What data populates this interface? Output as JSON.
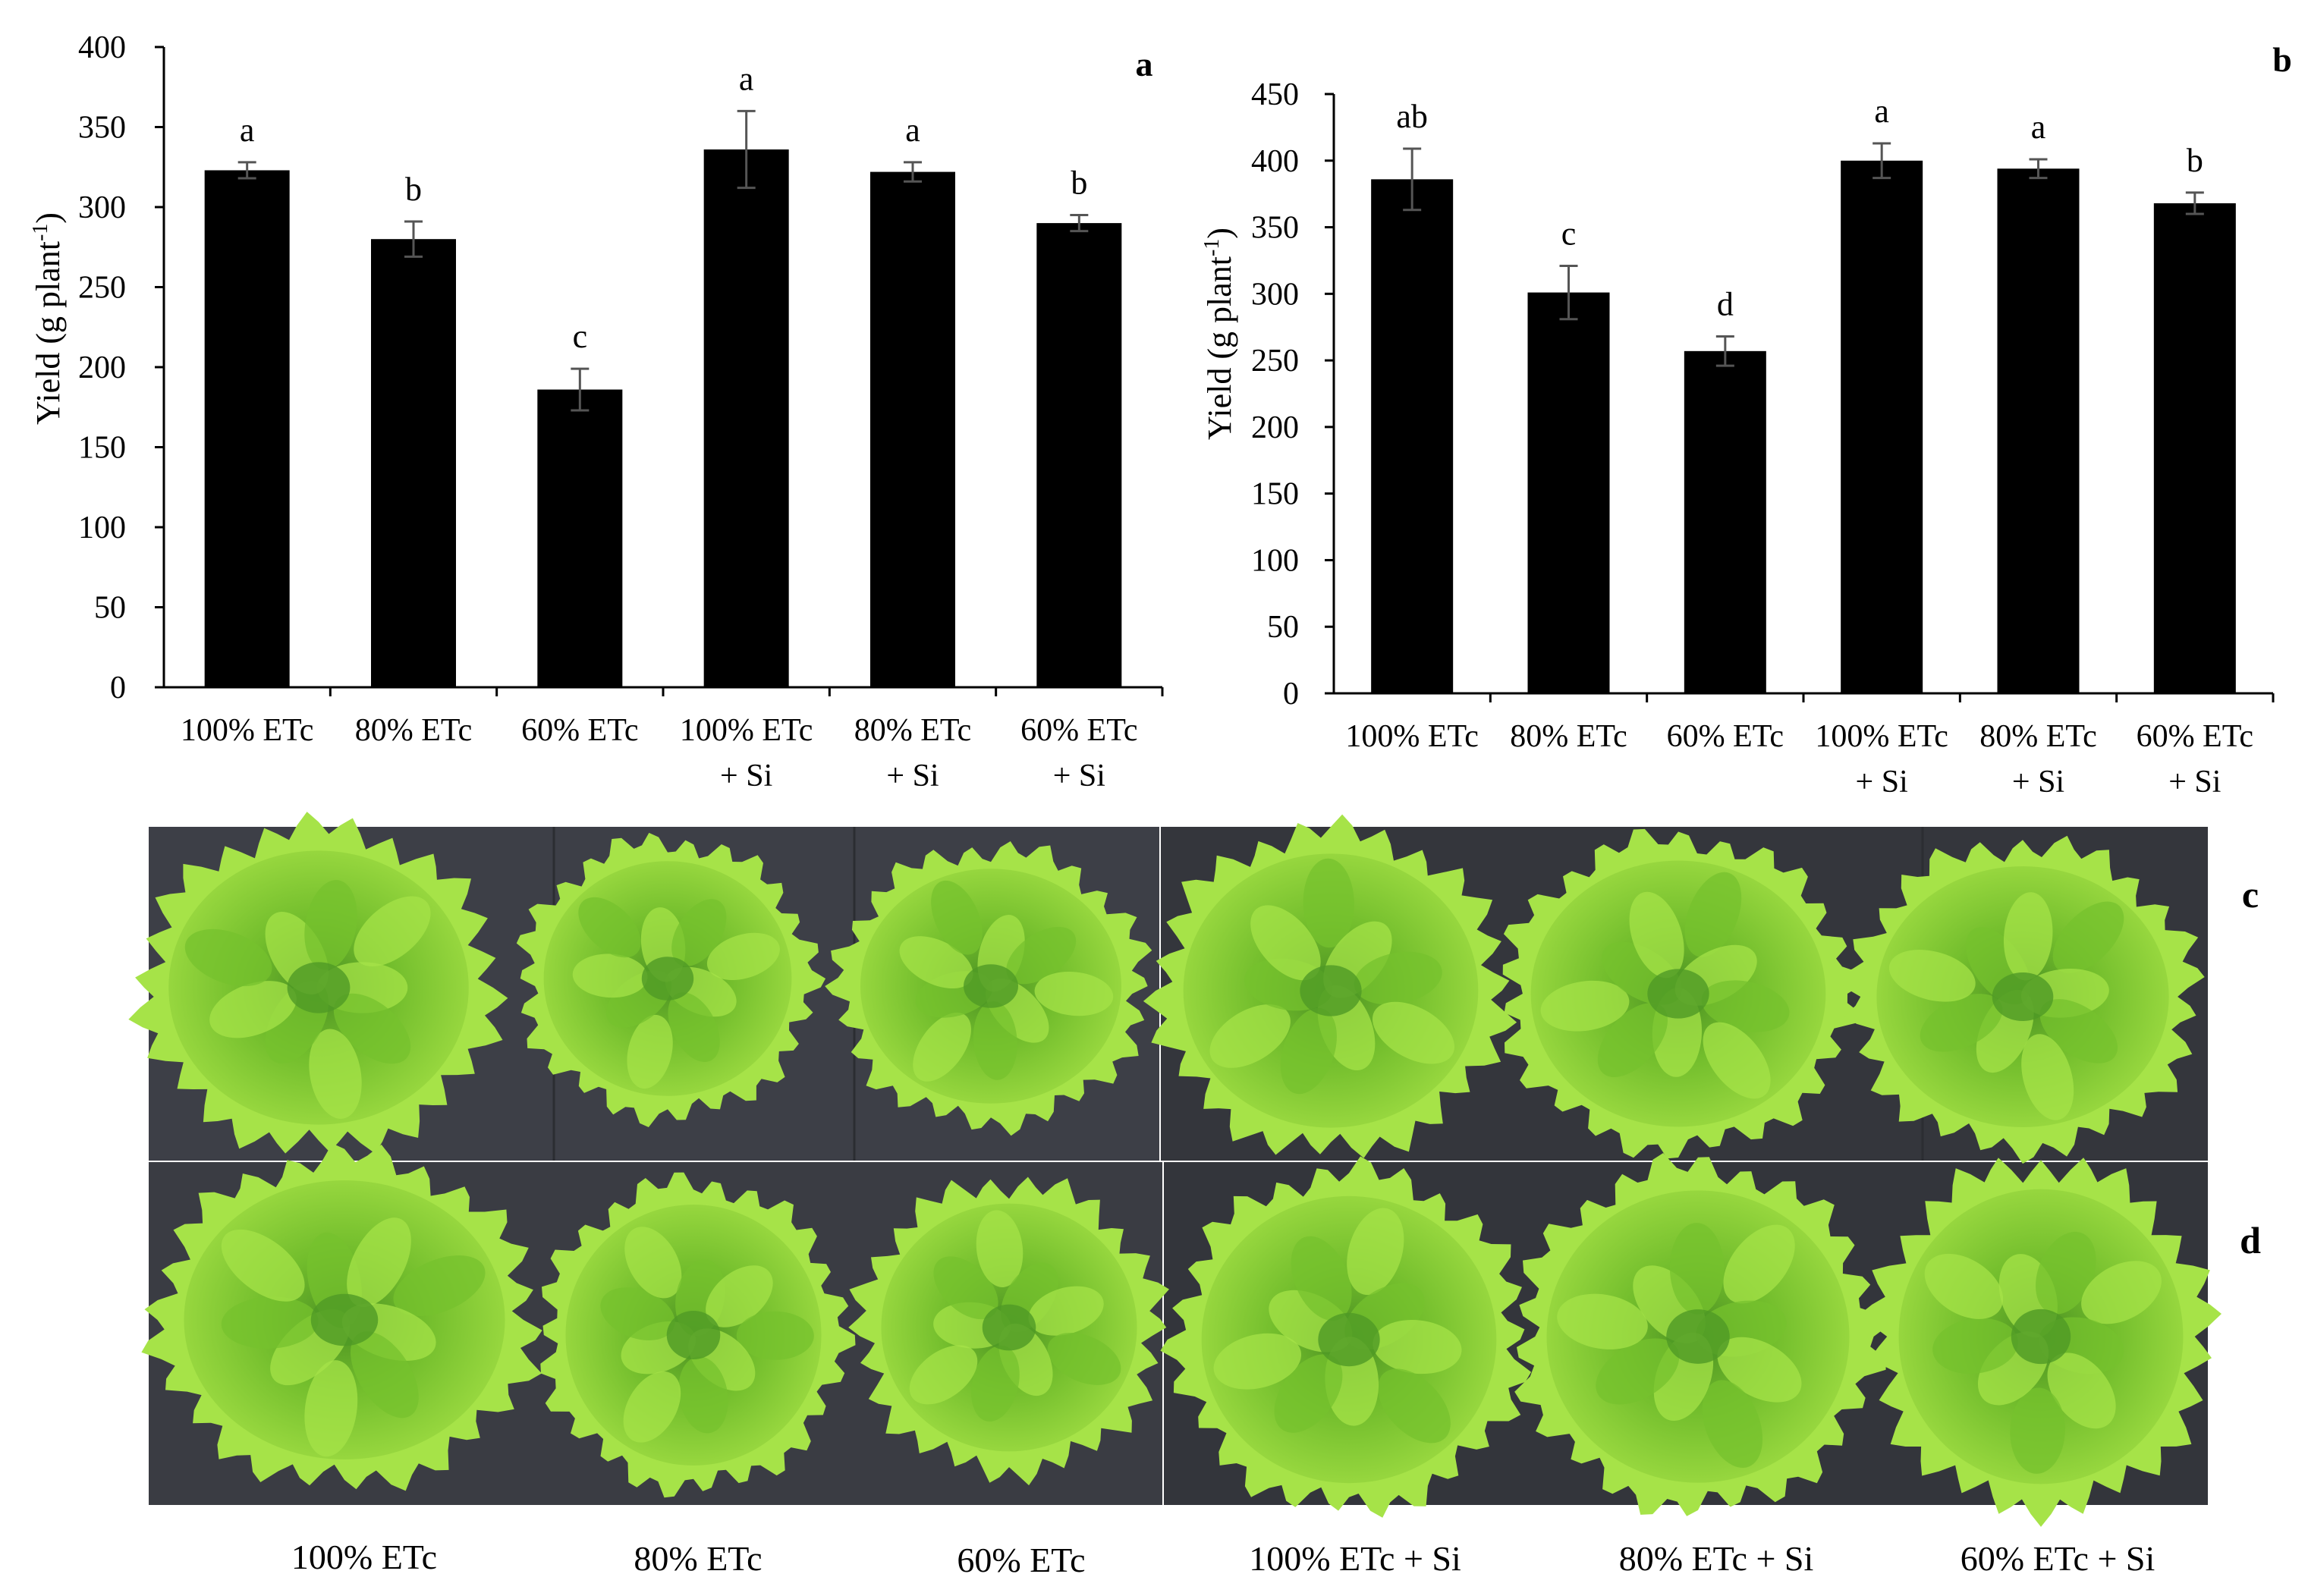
{
  "chart_data": [
    {
      "type": "bar",
      "panel_label": "a",
      "ylabel": "Yield (g plant",
      "ylabel_sup": "-1",
      "ylabel_close": ")",
      "ylim": [
        0,
        400
      ],
      "ytick_step": 50,
      "categories": [
        [
          "100% ETc"
        ],
        [
          "80% ETc"
        ],
        [
          "60% ETc"
        ],
        [
          "100% ETc",
          "+ Si"
        ],
        [
          "80% ETc",
          "+ Si"
        ],
        [
          "60% ETc",
          "+ Si"
        ]
      ],
      "values": [
        323,
        280,
        186,
        336,
        322,
        290
      ],
      "errors": [
        5,
        11,
        13,
        24,
        6,
        5
      ],
      "letters": [
        "a",
        "b",
        "c",
        "a",
        "a",
        "b"
      ]
    },
    {
      "type": "bar",
      "panel_label": "b",
      "ylabel": "Yield (g plant",
      "ylabel_sup": "-1",
      "ylabel_close": ")",
      "ylim": [
        0,
        450
      ],
      "ytick_step": 50,
      "categories": [
        [
          "100% ETc"
        ],
        [
          "80% ETc"
        ],
        [
          "60% ETc"
        ],
        [
          "100% ETc",
          "+ Si"
        ],
        [
          "80% ETc",
          "+ Si"
        ],
        [
          "60% ETc",
          "+ Si"
        ]
      ],
      "values": [
        386,
        301,
        257,
        400,
        394,
        368
      ],
      "errors": [
        23,
        20,
        11,
        13,
        7,
        8
      ],
      "letters": [
        "ab",
        "c",
        "d",
        "a",
        "a",
        "b"
      ]
    }
  ],
  "photos": {
    "row_c_label": "c",
    "row_d_label": "d",
    "captions": [
      "100% ETc",
      "80% ETc",
      "60% ETc",
      "100% ETc + Si",
      "80% ETc + Si",
      "60% ETc + Si"
    ]
  },
  "colors": {
    "bar": "#000000",
    "error_bar": "#555555",
    "photo_background_left": "#3c3e45",
    "photo_background_right": "#36383e",
    "lettuce_dark": "#4f9a25",
    "lettuce_mid": "#76c22e",
    "lettuce_light": "#a6e348"
  }
}
